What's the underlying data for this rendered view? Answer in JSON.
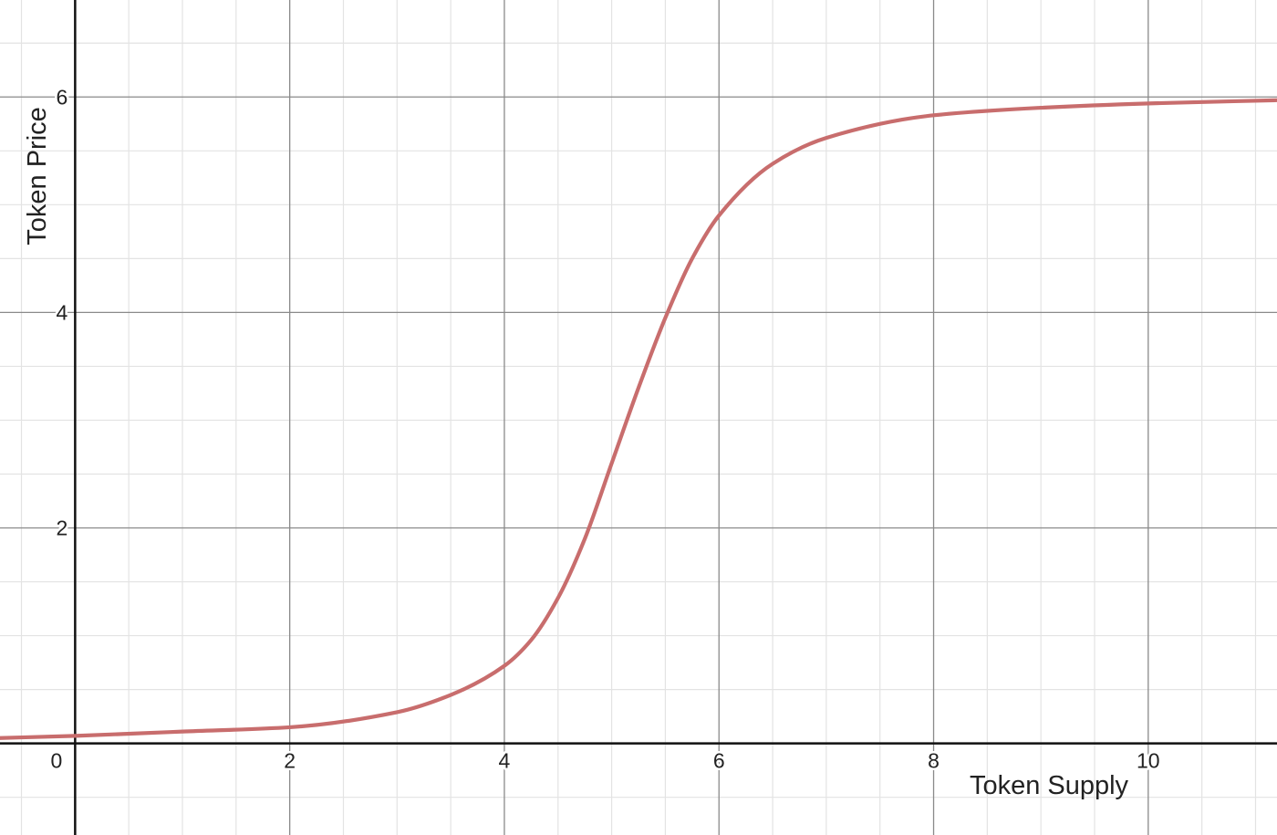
{
  "chart_data": {
    "type": "line",
    "xlabel": "Token Supply",
    "ylabel": "Token Price",
    "xlim": [
      -0.7,
      11.2
    ],
    "ylim": [
      -0.85,
      6.9
    ],
    "x_ticks": [
      0,
      2,
      4,
      6,
      8,
      10
    ],
    "y_ticks": [
      2,
      4,
      6
    ],
    "x_tick_labels": [
      "0",
      "2",
      "4",
      "6",
      "8",
      "10"
    ],
    "y_tick_labels": [
      "2",
      "4",
      "6"
    ],
    "minor_step": 0.5,
    "grid": true,
    "series": [
      {
        "color": "#c86d6d",
        "x": [
          -0.7,
          0,
          1,
          2,
          3,
          3.5,
          4,
          4.25,
          4.5,
          4.75,
          5,
          5.25,
          5.5,
          5.75,
          6,
          6.5,
          7,
          8,
          9,
          10,
          11.2
        ],
        "y": [
          0.05,
          0.07,
          0.11,
          0.15,
          0.29,
          0.45,
          0.72,
          0.96,
          1.35,
          1.9,
          2.6,
          3.3,
          3.95,
          4.5,
          4.9,
          5.38,
          5.62,
          5.83,
          5.9,
          5.94,
          5.97
        ]
      }
    ]
  }
}
